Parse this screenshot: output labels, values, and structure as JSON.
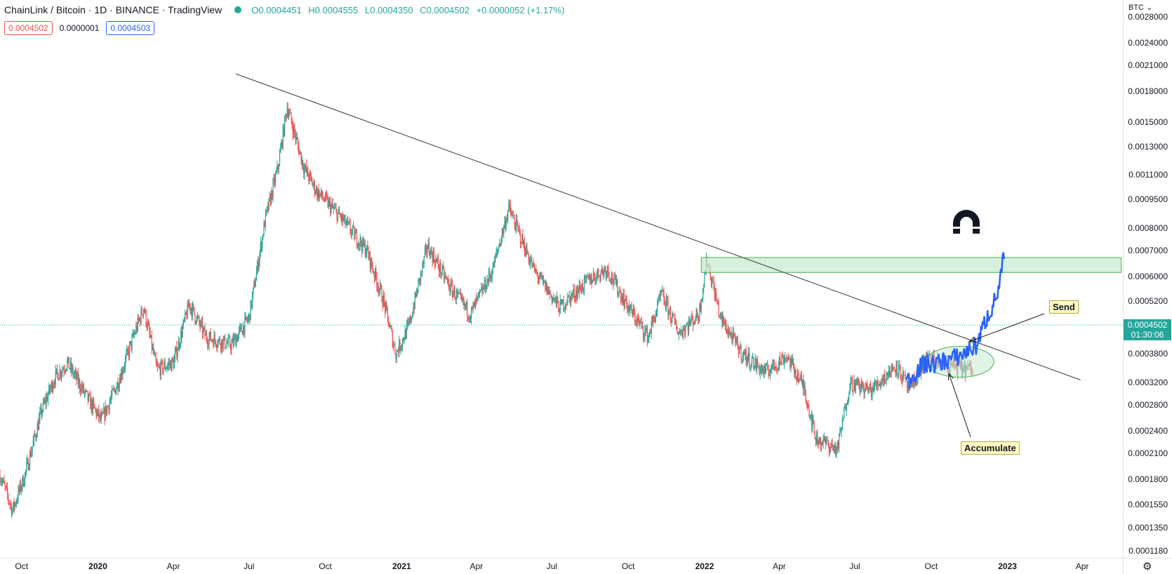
{
  "header": {
    "title": "ChainLink / Bitcoin · 1D · BINANCE · TradingView",
    "ohlc": {
      "open": "O0.0004451",
      "high": "H0.0004555",
      "low": "L0.0004350",
      "close": "C0.0004502",
      "change": "+0.0000052 (+1.17%)"
    },
    "sell_price": "0.0004502",
    "spread": "0.0000001",
    "buy_price": "0.0004503"
  },
  "price_axis": {
    "currency": "BTC",
    "currency_caret": "⌄",
    "ticks": [
      "0.0028000",
      "0.0024000",
      "0.0021000",
      "0.0018000",
      "0.0015000",
      "0.0013000",
      "0.0011000",
      "0.0009500",
      "0.0008000",
      "0.0007000",
      "0.0006000",
      "0.0005200",
      "0.0004500",
      "0.0003800",
      "0.0003200",
      "0.0002800",
      "0.0002400",
      "0.0002100",
      "0.0001800",
      "0.0001550",
      "0.0001350",
      "0.0001180"
    ],
    "last_price": "0.0004502",
    "countdown": "01:30:06"
  },
  "time_axis": {
    "ticks": [
      "Oct",
      "2020",
      "Apr",
      "Jul",
      "Oct",
      "2021",
      "Apr",
      "Jul",
      "Oct",
      "2022",
      "Apr",
      "Jul",
      "Oct",
      "2023",
      "Apr"
    ],
    "bold": [
      false,
      true,
      false,
      false,
      false,
      true,
      false,
      false,
      false,
      true,
      false,
      false,
      false,
      true,
      false
    ]
  },
  "annotations": {
    "send": "Send",
    "accumulate": "Accumulate"
  },
  "colors": {
    "up": "#26a69a",
    "down": "#ef5350",
    "projection": "#2962ff",
    "zone_fill": "#c8ebd1",
    "zone_stroke": "#4caf50",
    "trendline": "#555555"
  },
  "chart_data": {
    "type": "candlestick",
    "title": "ChainLink / Bitcoin · 1D · BINANCE",
    "scale": "log",
    "ylim": [
      0.000113,
      0.0031
    ],
    "x_range": [
      "2019-09-05",
      "2023-05-20"
    ],
    "close_path": [
      {
        "date": "2019-09-05",
        "value": 0.000185
      },
      {
        "date": "2019-09-20",
        "value": 0.00015
      },
      {
        "date": "2019-10-05",
        "value": 0.000185
      },
      {
        "date": "2019-10-25",
        "value": 0.00027
      },
      {
        "date": "2019-11-10",
        "value": 0.00033
      },
      {
        "date": "2019-11-25",
        "value": 0.00036
      },
      {
        "date": "2019-12-20",
        "value": 0.00029
      },
      {
        "date": "2020-01-05",
        "value": 0.000255
      },
      {
        "date": "2020-01-25",
        "value": 0.00032
      },
      {
        "date": "2020-02-25",
        "value": 0.0005
      },
      {
        "date": "2020-03-12",
        "value": 0.000345
      },
      {
        "date": "2020-04-01",
        "value": 0.00036
      },
      {
        "date": "2020-04-20",
        "value": 0.00051
      },
      {
        "date": "2020-05-10",
        "value": 0.00042
      },
      {
        "date": "2020-06-10",
        "value": 0.0004
      },
      {
        "date": "2020-07-01",
        "value": 0.00047
      },
      {
        "date": "2020-07-20",
        "value": 0.00083
      },
      {
        "date": "2020-08-05",
        "value": 0.00115
      },
      {
        "date": "2020-08-16",
        "value": 0.00165
      },
      {
        "date": "2020-09-05",
        "value": 0.00115
      },
      {
        "date": "2020-09-20",
        "value": 0.001
      },
      {
        "date": "2020-10-20",
        "value": 0.00085
      },
      {
        "date": "2020-11-20",
        "value": 0.0007
      },
      {
        "date": "2020-12-10",
        "value": 0.00052
      },
      {
        "date": "2020-12-25",
        "value": 0.00038
      },
      {
        "date": "2021-01-10",
        "value": 0.00045
      },
      {
        "date": "2021-02-01",
        "value": 0.00072
      },
      {
        "date": "2021-03-01",
        "value": 0.00056
      },
      {
        "date": "2021-03-25",
        "value": 0.00048
      },
      {
        "date": "2021-04-20",
        "value": 0.00062
      },
      {
        "date": "2021-05-10",
        "value": 0.0009
      },
      {
        "date": "2021-05-20",
        "value": 0.0008
      },
      {
        "date": "2021-06-10",
        "value": 0.00062
      },
      {
        "date": "2021-07-10",
        "value": 0.0005
      },
      {
        "date": "2021-08-15",
        "value": 0.00059
      },
      {
        "date": "2021-09-05",
        "value": 0.00063
      },
      {
        "date": "2021-10-01",
        "value": 0.0005
      },
      {
        "date": "2021-10-25",
        "value": 0.00042
      },
      {
        "date": "2021-11-10",
        "value": 0.00054
      },
      {
        "date": "2021-12-01",
        "value": 0.00043
      },
      {
        "date": "2021-12-25",
        "value": 0.00048
      },
      {
        "date": "2022-01-04",
        "value": 0.000665
      },
      {
        "date": "2022-01-20",
        "value": 0.00047
      },
      {
        "date": "2022-02-15",
        "value": 0.00038
      },
      {
        "date": "2022-03-15",
        "value": 0.00034
      },
      {
        "date": "2022-04-10",
        "value": 0.000375
      },
      {
        "date": "2022-05-01",
        "value": 0.00031
      },
      {
        "date": "2022-05-15",
        "value": 0.00023
      },
      {
        "date": "2022-06-10",
        "value": 0.000215
      },
      {
        "date": "2022-06-25",
        "value": 0.00032
      },
      {
        "date": "2022-07-20",
        "value": 0.000305
      },
      {
        "date": "2022-08-20",
        "value": 0.000355
      },
      {
        "date": "2022-09-05",
        "value": 0.000305
      },
      {
        "date": "2022-09-25",
        "value": 0.00037
      },
      {
        "date": "2022-10-20",
        "value": 0.000355
      },
      {
        "date": "2022-11-20",
        "value": 0.000345
      }
    ],
    "projection_path": [
      {
        "date": "2022-09-01",
        "value": 0.00032
      },
      {
        "date": "2022-09-20",
        "value": 0.000355
      },
      {
        "date": "2022-10-10",
        "value": 0.00036
      },
      {
        "date": "2022-11-05",
        "value": 0.000375
      },
      {
        "date": "2022-11-25",
        "value": 0.0004
      },
      {
        "date": "2022-12-05",
        "value": 0.00046
      },
      {
        "date": "2022-12-15",
        "value": 0.00051
      },
      {
        "date": "2022-12-22",
        "value": 0.00056
      },
      {
        "date": "2022-12-28",
        "value": 0.00069
      }
    ],
    "trendline": [
      {
        "date": "2020-06-15",
        "value": 0.002
      },
      {
        "date": "2023-03-30",
        "value": 0.000325
      }
    ],
    "resistance_zone": {
      "start": "2021-12-28",
      "end": "2023-05-18",
      "low": 0.000615,
      "high": 0.000672
    },
    "accumulation_zone": {
      "center_date": "2022-11-05",
      "center_value": 0.000362
    },
    "current_price": 0.0004502
  }
}
